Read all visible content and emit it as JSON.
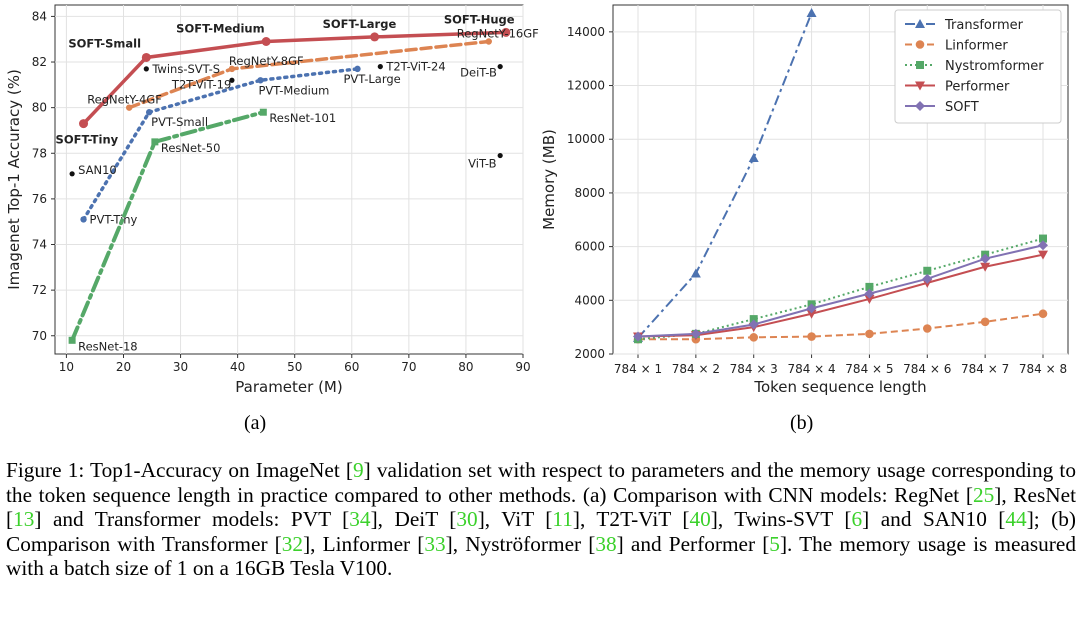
{
  "chart_data": [
    {
      "type": "line",
      "panel": "(a)",
      "title": "",
      "xlabel": "Parameter (M)",
      "ylabel": "Imagenet Top-1 Accuracy (%)",
      "xlim": [
        8,
        90
      ],
      "ylim": [
        69.2,
        84.5
      ],
      "xticks": [
        10,
        20,
        30,
        40,
        50,
        60,
        70,
        80,
        90
      ],
      "yticks": [
        70,
        72,
        74,
        76,
        78,
        80,
        82,
        84
      ],
      "grid": true,
      "series": [
        {
          "name": "SOFT",
          "color": "#c44e52",
          "style": "solid",
          "points": [
            {
              "x": 13,
              "y": 79.3,
              "label": "SOFT-Tiny"
            },
            {
              "x": 24,
              "y": 82.2,
              "label": "SOFT-Small"
            },
            {
              "x": 45,
              "y": 82.9,
              "label": "SOFT-Medium"
            },
            {
              "x": 64,
              "y": 83.1,
              "label": "SOFT-Large"
            },
            {
              "x": 87,
              "y": 83.3,
              "label": "SOFT-Huge"
            }
          ]
        },
        {
          "name": "RegNetY",
          "color": "#dd8452",
          "style": "dashed",
          "points": [
            {
              "x": 21,
              "y": 80.0,
              "label": "RegNetY-4GF"
            },
            {
              "x": 39,
              "y": 81.7,
              "label": "RegNetY-8GF"
            },
            {
              "x": 84,
              "y": 82.9,
              "label": "RegNetY-16GF"
            }
          ]
        },
        {
          "name": "PVT",
          "color": "#4c72b0",
          "style": "dotted",
          "points": [
            {
              "x": 13,
              "y": 75.1,
              "label": "PVT-Tiny"
            },
            {
              "x": 24.5,
              "y": 79.8,
              "label": "PVT-Small"
            },
            {
              "x": 44,
              "y": 81.2,
              "label": "PVT-Medium"
            },
            {
              "x": 61,
              "y": 81.7,
              "label": "PVT-Large"
            }
          ]
        },
        {
          "name": "ResNet",
          "color": "#55a868",
          "style": "dashdot",
          "points": [
            {
              "x": 11,
              "y": 69.8,
              "label": "ResNet-18"
            },
            {
              "x": 25.5,
              "y": 78.5,
              "label": "ResNet-50"
            },
            {
              "x": 44.5,
              "y": 79.8,
              "label": "ResNet-101"
            }
          ]
        }
      ],
      "points": [
        {
          "x": 11,
          "y": 77.1,
          "label": "SAN10"
        },
        {
          "x": 24,
          "y": 81.7,
          "label": "Twins-SVT-S"
        },
        {
          "x": 39,
          "y": 81.2,
          "label": "T2T-ViT-19"
        },
        {
          "x": 65,
          "y": 81.8,
          "label": "T2T-ViT-24"
        },
        {
          "x": 86,
          "y": 81.8,
          "label": "DeiT-B"
        },
        {
          "x": 86,
          "y": 77.9,
          "label": "ViT-B"
        }
      ]
    },
    {
      "type": "line",
      "panel": "(b)",
      "title": "",
      "xlabel": "Token sequence length",
      "ylabel": "Memory (MB)",
      "categories": [
        "784 × 1",
        "784 × 2",
        "784 × 3",
        "784 × 4",
        "784 × 5",
        "784 × 6",
        "784 × 7",
        "784 × 8"
      ],
      "ylim": [
        2000,
        15000
      ],
      "yticks": [
        2000,
        4000,
        6000,
        8000,
        10000,
        12000,
        14000
      ],
      "grid": true,
      "legend": "top-right",
      "series": [
        {
          "name": "Transformer",
          "color": "#4c72b0",
          "style": "dashdot",
          "marker": "triangle-up",
          "values": [
            2600,
            5000,
            9300,
            14700,
            null,
            null,
            null,
            null
          ]
        },
        {
          "name": "Linformer",
          "color": "#dd8452",
          "style": "dashed",
          "marker": "circle",
          "values": [
            2550,
            2550,
            2620,
            2650,
            2750,
            2950,
            3200,
            3500
          ]
        },
        {
          "name": "Nystromformer",
          "color": "#55a868",
          "style": "dotted",
          "marker": "square",
          "values": [
            2550,
            2750,
            3300,
            3850,
            4500,
            5100,
            5700,
            6300
          ]
        },
        {
          "name": "Performer",
          "color": "#c44e52",
          "style": "solid",
          "marker": "triangle-down",
          "values": [
            2650,
            2700,
            3000,
            3500,
            4050,
            4650,
            5250,
            5700
          ]
        },
        {
          "name": "SOFT",
          "color": "#8172b3",
          "style": "solid",
          "marker": "diamond",
          "values": [
            2650,
            2750,
            3100,
            3700,
            4250,
            4800,
            5550,
            6050
          ]
        }
      ]
    }
  ],
  "panel_labels": {
    "a": "(a)",
    "b": "(b)"
  },
  "caption": [
    {
      "t": "Figure 1: Top1-Accuracy on ImageNet "
    },
    {
      "t": "[",
      "r": false
    },
    {
      "t": "9",
      "r": true
    },
    {
      "t": "] validation set with respect to parameters and the memory usage corresponding to the token sequence length in practice compared to other methods. (a) Comparison with CNN models: RegNet "
    },
    {
      "t": "["
    },
    {
      "t": "25",
      "r": true
    },
    {
      "t": "], ResNet ["
    },
    {
      "t": "13",
      "r": true
    },
    {
      "t": "] and Transformer models: PVT ["
    },
    {
      "t": "34",
      "r": true
    },
    {
      "t": "], DeiT ["
    },
    {
      "t": "30",
      "r": true
    },
    {
      "t": "], ViT ["
    },
    {
      "t": "11",
      "r": true
    },
    {
      "t": "], T2T-ViT ["
    },
    {
      "t": "40",
      "r": true
    },
    {
      "t": "], Twins-SVT ["
    },
    {
      "t": "6",
      "r": true
    },
    {
      "t": "] and SAN10 ["
    },
    {
      "t": "44",
      "r": true
    },
    {
      "t": "]; (b) Comparison with Transformer ["
    },
    {
      "t": "32",
      "r": true
    },
    {
      "t": "], Linformer ["
    },
    {
      "t": "33",
      "r": true
    },
    {
      "t": "], Nyströformer ["
    },
    {
      "t": "38",
      "r": true
    },
    {
      "t": "] and Performer ["
    },
    {
      "t": "5",
      "r": true
    },
    {
      "t": "]. The memory usage is measured with a batch size of 1 on a 16GB Tesla V100."
    }
  ]
}
